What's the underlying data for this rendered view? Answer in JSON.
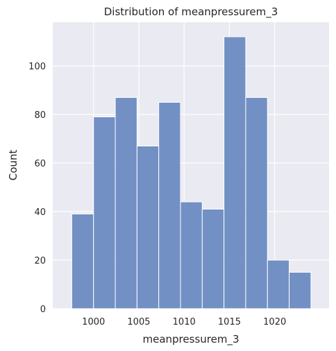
{
  "chart_data": {
    "type": "bar",
    "title": "Distribution of meanpressurem_3",
    "xlabel": "meanpressurem_3",
    "ylabel": "Count",
    "bin_edges": [
      997.6,
      1000.0,
      1002.4,
      1004.8,
      1007.2,
      1009.6,
      1012.0,
      1014.4,
      1016.8,
      1019.2,
      1021.6,
      1024.0
    ],
    "values": [
      39,
      79,
      87,
      67,
      85,
      44,
      41,
      112,
      87,
      20,
      15
    ],
    "xlim": [
      995.5,
      1026.0
    ],
    "ylim": [
      0,
      118
    ],
    "xticks": [
      1000,
      1005,
      1010,
      1015,
      1020
    ],
    "yticks": [
      0,
      20,
      40,
      60,
      80,
      100
    ],
    "grid": true,
    "bar_color": "#6b8bc1",
    "background_color": "#eaeaf2"
  }
}
